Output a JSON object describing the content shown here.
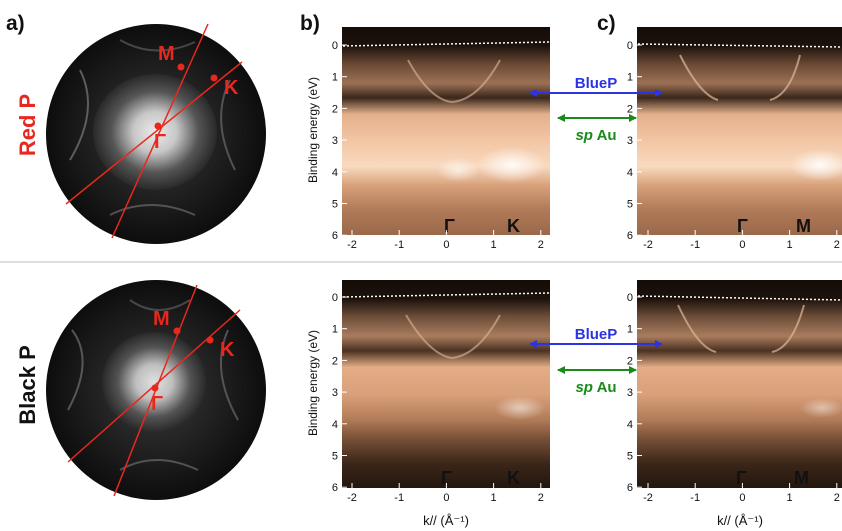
{
  "panel_labels": {
    "a": "a)",
    "b": "b)",
    "c": "c)"
  },
  "rows": [
    {
      "sample": "Red P",
      "leed_points": {
        "m": "M",
        "k": "K",
        "gamma": "Γ"
      },
      "panel_b_points": [
        "Γ",
        "K"
      ],
      "panel_c_points": [
        "Γ",
        "M"
      ]
    },
    {
      "sample": "Black P",
      "leed_points": {
        "m": "M",
        "k": "K",
        "gamma": "Γ"
      },
      "panel_b_points": [
        "Γ",
        "K"
      ],
      "panel_c_points": [
        "Γ",
        "M"
      ]
    }
  ],
  "arrows": {
    "bluep": "BlueP",
    "sp_prefix": "sp",
    "sp_suffix": " Au"
  },
  "axes": {
    "ylabel": "Binding energy (eV)",
    "xlabel": "k// (Å⁻¹)",
    "y_ticks": [
      "0",
      "1",
      "2",
      "3",
      "4",
      "5",
      "6"
    ],
    "x_ticks": [
      "-2",
      "-1",
      "0",
      "1",
      "2"
    ],
    "ylim": [
      0,
      6
    ],
    "xlim": [
      -2.2,
      2.2
    ]
  },
  "colors": {
    "label_red": "#e8281e",
    "arrow_blue": "#2b34e0",
    "arrow_green": "#1a8a1a",
    "arpes_bright": "#f5c9a6",
    "arpes_dark": "#140c08"
  }
}
